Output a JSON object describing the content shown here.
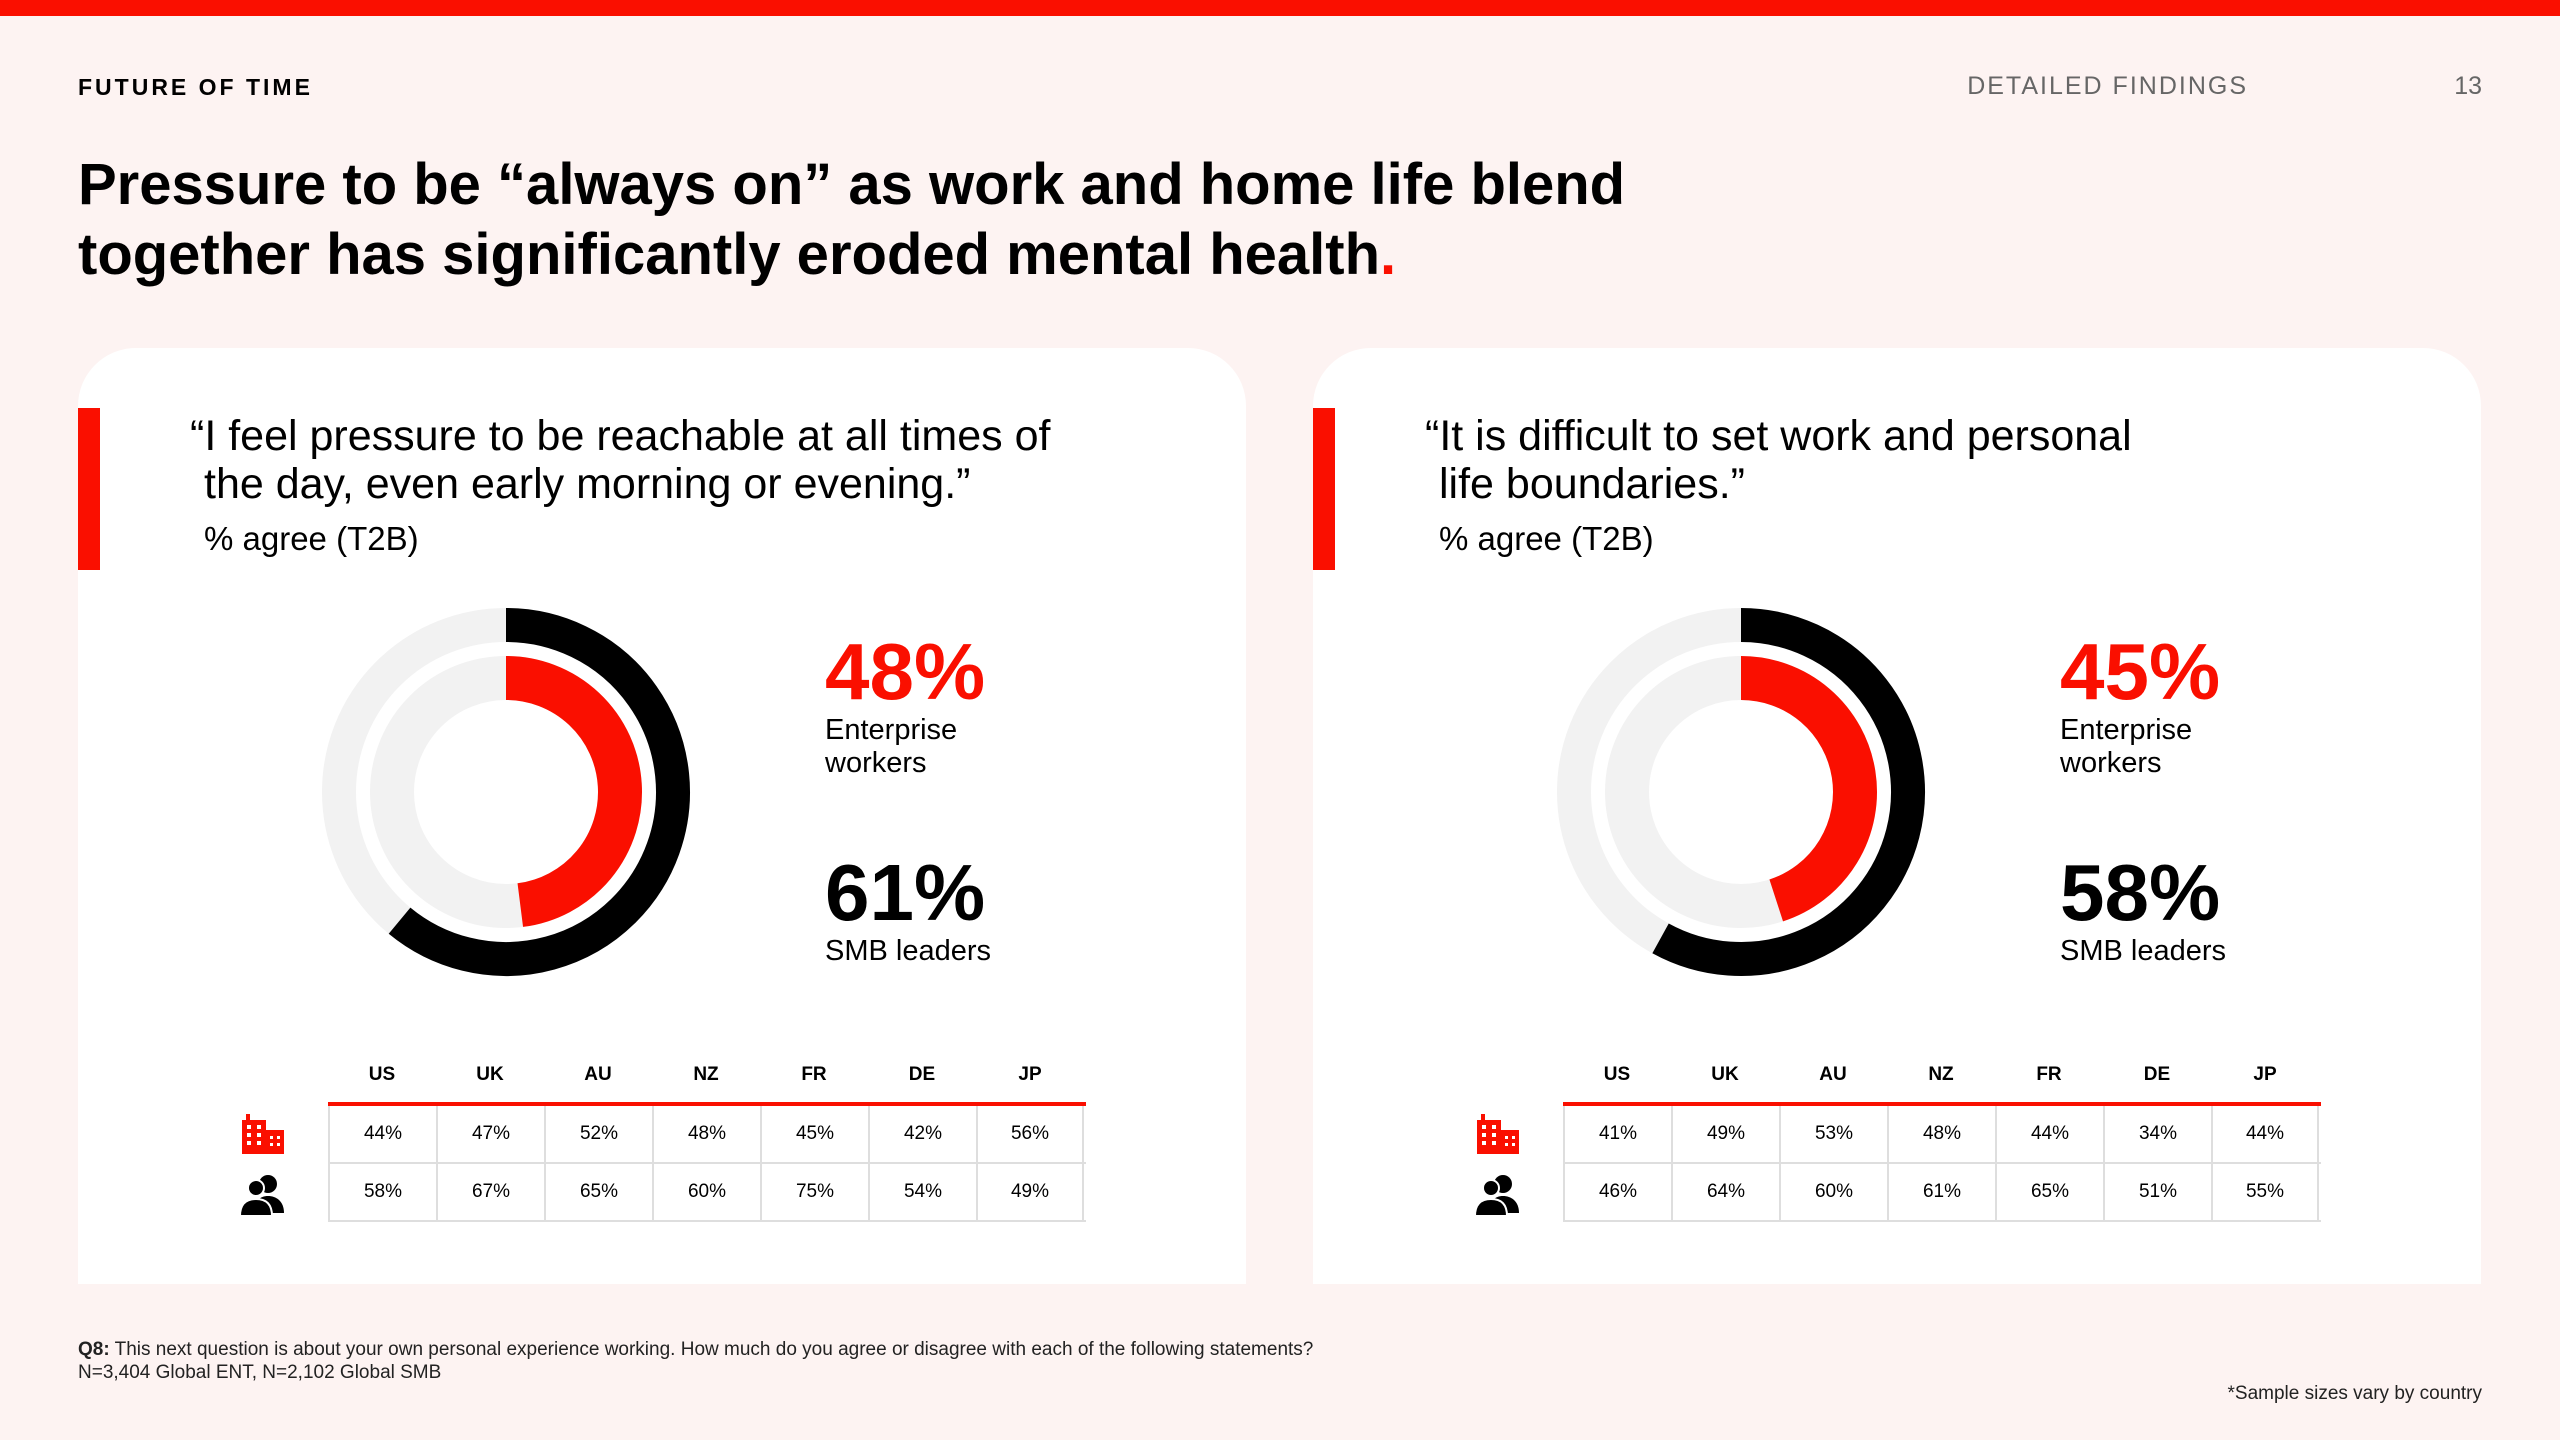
{
  "header": {
    "brand": "FUTURE OF TIME",
    "section": "DETAILED FINDINGS",
    "page": "13",
    "headline": "Pressure to be “always on” as work and home life blend together has significantly eroded mental health",
    "headline_dot": "."
  },
  "colors": {
    "accent": "#fa0f00",
    "dark": "#000000",
    "track": "#f2f2f2",
    "background": "#fdf3f2"
  },
  "icons": {
    "row1": "office-building-icon",
    "row2": "people-icon"
  },
  "cards": [
    {
      "quote_line1": "“I feel pressure to be reachable at all times of",
      "quote_line2": "the day, even early morning or evening.”",
      "subtitle": "% agree (T2B)",
      "stat1_value": "48%",
      "stat1_label": "Enterprise workers",
      "stat2_value": "61%",
      "stat2_label": "SMB leaders",
      "countries": [
        "US",
        "UK",
        "AU",
        "NZ",
        "FR",
        "DE",
        "JP"
      ],
      "row1": [
        "44%",
        "47%",
        "52%",
        "48%",
        "45%",
        "42%",
        "56%"
      ],
      "row2": [
        "58%",
        "67%",
        "65%",
        "60%",
        "75%",
        "54%",
        "49%"
      ]
    },
    {
      "quote_line1": "“It is difficult to set work and personal",
      "quote_line2": "life boundaries.”",
      "subtitle": "% agree (T2B)",
      "stat1_value": "45%",
      "stat1_label": "Enterprise workers",
      "stat2_value": "58%",
      "stat2_label": "SMB leaders",
      "countries": [
        "US",
        "UK",
        "AU",
        "NZ",
        "FR",
        "DE",
        "JP"
      ],
      "row1": [
        "41%",
        "49%",
        "53%",
        "48%",
        "44%",
        "34%",
        "44%"
      ],
      "row2": [
        "46%",
        "64%",
        "60%",
        "61%",
        "65%",
        "51%",
        "55%"
      ]
    }
  ],
  "chart_data": [
    {
      "type": "pie",
      "title": "“I feel pressure to be reachable at all times of the day, even early morning or evening.”",
      "subtitle": "% agree (T2B)",
      "series": [
        {
          "name": "Enterprise workers",
          "values": [
            48
          ],
          "ring": "inner",
          "color": "#fa0f00"
        },
        {
          "name": "SMB leaders",
          "values": [
            61
          ],
          "ring": "outer",
          "color": "#000000"
        }
      ],
      "table": {
        "columns": [
          "US",
          "UK",
          "AU",
          "NZ",
          "FR",
          "DE",
          "JP"
        ],
        "rows": [
          {
            "name": "Enterprise workers",
            "values": [
              44,
              47,
              52,
              48,
              45,
              42,
              56
            ]
          },
          {
            "name": "SMB leaders",
            "values": [
              58,
              67,
              65,
              60,
              75,
              54,
              49
            ]
          }
        ]
      }
    },
    {
      "type": "pie",
      "title": "“It is difficult to set work and personal life boundaries.”",
      "subtitle": "% agree (T2B)",
      "series": [
        {
          "name": "Enterprise workers",
          "values": [
            45
          ],
          "ring": "inner",
          "color": "#fa0f00"
        },
        {
          "name": "SMB leaders",
          "values": [
            58
          ],
          "ring": "outer",
          "color": "#000000"
        }
      ],
      "table": {
        "columns": [
          "US",
          "UK",
          "AU",
          "NZ",
          "FR",
          "DE",
          "JP"
        ],
        "rows": [
          {
            "name": "Enterprise workers",
            "values": [
              41,
              49,
              53,
              48,
              44,
              34,
              44
            ]
          },
          {
            "name": "SMB leaders",
            "values": [
              46,
              64,
              60,
              61,
              65,
              51,
              55
            ]
          }
        ]
      }
    }
  ],
  "footer": {
    "q_label": "Q8:",
    "question": "This next question is about your own personal experience working. How much do you agree or disagree with each of the following statements?",
    "sample": "N=3,404 Global ENT, N=2,102 Global SMB",
    "sample_note": "*Sample sizes vary by country"
  }
}
